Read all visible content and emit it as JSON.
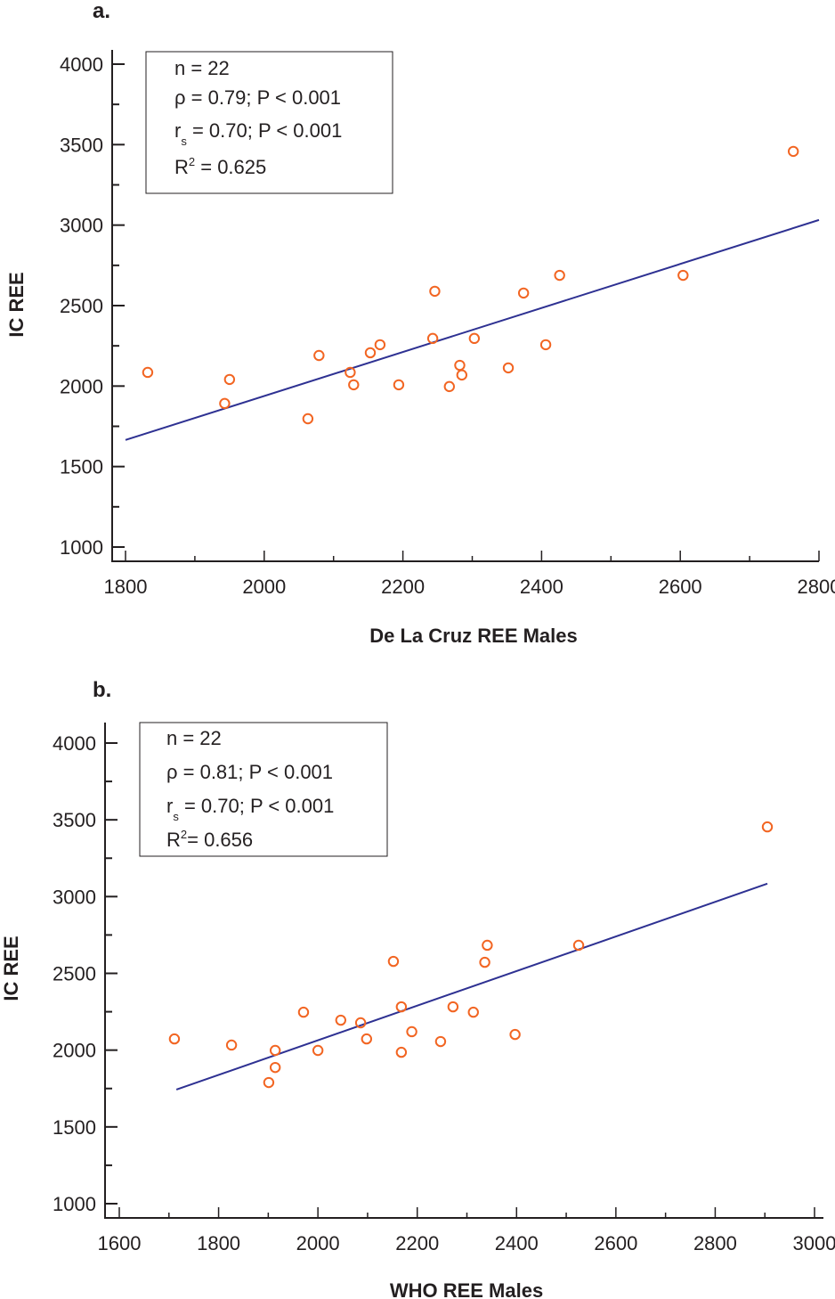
{
  "chart_data": [
    {
      "type": "scatter",
      "panel_label": "a.",
      "title": "",
      "xlabel": "De La Cruz REE Males",
      "ylabel": "IC REE",
      "xlim": [
        1800,
        2800
      ],
      "ylim": [
        1000,
        4000
      ],
      "xticks": [
        1800,
        2000,
        2200,
        2400,
        2600,
        2800
      ],
      "xminor": [
        1900,
        2100,
        2300,
        2500,
        2700
      ],
      "yticks": [
        1000,
        1500,
        2000,
        2500,
        3000,
        3500,
        4000
      ],
      "yminor": [
        1250,
        1750,
        2250,
        2750,
        3250,
        3750
      ],
      "grid": false,
      "stats": {
        "n_line": "n = 22",
        "rho_line": "ρ = 0.79; P < 0.001",
        "rs_prefix": "r",
        "rs_sub": "s",
        "rs_rest": " = 0.70; P < 0.001",
        "r2_prefix": "R",
        "r2_sup": "2",
        "r2_rest": " = 0.625"
      },
      "stats_box_placement": "top-left",
      "points": [
        {
          "x": 1832,
          "y": 2085
        },
        {
          "x": 1943,
          "y": 1892
        },
        {
          "x": 1950,
          "y": 2041
        },
        {
          "x": 2063,
          "y": 1797
        },
        {
          "x": 2079,
          "y": 2190
        },
        {
          "x": 2124,
          "y": 2085
        },
        {
          "x": 2129,
          "y": 2008
        },
        {
          "x": 2153,
          "y": 2207
        },
        {
          "x": 2167,
          "y": 2257
        },
        {
          "x": 2194,
          "y": 2008
        },
        {
          "x": 2243,
          "y": 2296
        },
        {
          "x": 2246,
          "y": 2589
        },
        {
          "x": 2267,
          "y": 1997
        },
        {
          "x": 2282,
          "y": 2129
        },
        {
          "x": 2285,
          "y": 2069
        },
        {
          "x": 2303,
          "y": 2296
        },
        {
          "x": 2352,
          "y": 2113
        },
        {
          "x": 2374,
          "y": 2578
        },
        {
          "x": 2406,
          "y": 2257
        },
        {
          "x": 2426,
          "y": 2688
        },
        {
          "x": 2604,
          "y": 2688
        },
        {
          "x": 2763,
          "y": 3458
        }
      ],
      "regression_line": {
        "x": [
          1800,
          2800
        ],
        "y": [
          1665,
          3032
        ]
      },
      "colors": {
        "points": "#f26522",
        "line": "#2e3192",
        "axis": "#231f20"
      }
    },
    {
      "type": "scatter",
      "panel_label": "b.",
      "title": "",
      "xlabel": "WHO REE Males",
      "ylabel": "IC REE",
      "xlim": [
        1600,
        3000
      ],
      "ylim": [
        1000,
        4000
      ],
      "xticks": [
        1600,
        1800,
        2000,
        2200,
        2400,
        2600,
        2800,
        3000
      ],
      "xminor": [
        1700,
        1900,
        2100,
        2300,
        2500,
        2700,
        2900
      ],
      "yticks": [
        1000,
        1500,
        2000,
        2500,
        3000,
        3500,
        4000
      ],
      "yminor": [
        1250,
        1750,
        2250,
        2750,
        3250,
        3750
      ],
      "grid": false,
      "stats": {
        "n_line": "n = 22",
        "rho_line": "ρ = 0.81; P < 0.001",
        "rs_prefix": "r",
        "rs_sub": "s",
        "rs_rest": " = 0.70; P < 0.001",
        "r2_prefix": "R",
        "r2_sup": "2",
        "r2_rest": "= 0.656"
      },
      "stats_box_placement": "top-left",
      "points": [
        {
          "x": 1711,
          "y": 2073
        },
        {
          "x": 1826,
          "y": 2033
        },
        {
          "x": 1914,
          "y": 1998
        },
        {
          "x": 1914,
          "y": 1887
        },
        {
          "x": 1901,
          "y": 1789
        },
        {
          "x": 1971,
          "y": 2247
        },
        {
          "x": 2000,
          "y": 1998
        },
        {
          "x": 2046,
          "y": 2195
        },
        {
          "x": 2086,
          "y": 2178
        },
        {
          "x": 2098,
          "y": 2073
        },
        {
          "x": 2152,
          "y": 2578
        },
        {
          "x": 2168,
          "y": 2282
        },
        {
          "x": 2168,
          "y": 1986
        },
        {
          "x": 2189,
          "y": 2120
        },
        {
          "x": 2247,
          "y": 2056
        },
        {
          "x": 2272,
          "y": 2282
        },
        {
          "x": 2313,
          "y": 2247
        },
        {
          "x": 2336,
          "y": 2572
        },
        {
          "x": 2341,
          "y": 2683
        },
        {
          "x": 2397,
          "y": 2102
        },
        {
          "x": 2525,
          "y": 2683
        },
        {
          "x": 2905,
          "y": 3454
        }
      ],
      "regression_line": {
        "x": [
          1715,
          2905
        ],
        "y": [
          1743,
          3084
        ]
      },
      "colors": {
        "points": "#f26522",
        "line": "#2e3192",
        "axis": "#231f20"
      }
    }
  ]
}
